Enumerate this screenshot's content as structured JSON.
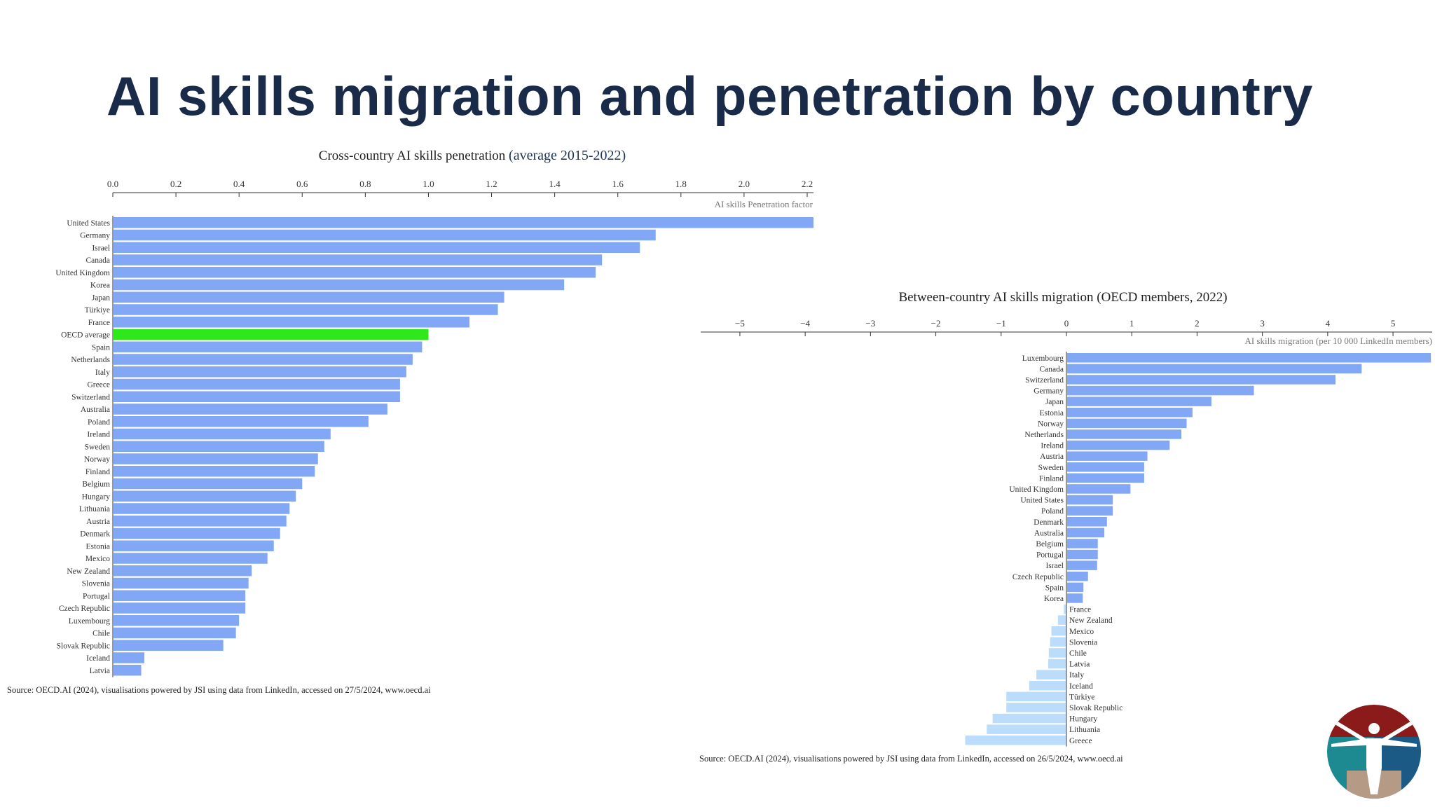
{
  "page": {
    "title": "AI skills migration and penetration by country"
  },
  "colors": {
    "bar": "#82a7f5",
    "highlight": "#2ee81c",
    "negative": "#bcdcfb",
    "title": "#1a2b4a"
  },
  "chart_data": [
    {
      "type": "bar",
      "orientation": "horizontal",
      "title": "Cross-country AI skills penetration",
      "title_suffix": "(average 2015-2022)",
      "xlabel": "AI skills Penetration factor",
      "xlim": [
        0,
        2.22
      ],
      "ticks": [
        "0.0",
        "0.2",
        "0.4",
        "0.6",
        "0.8",
        "1.0",
        "1.2",
        "1.4",
        "1.6",
        "1.8",
        "2.0",
        "2.2"
      ],
      "highlight": "OECD average",
      "categories": [
        "United States",
        "Germany",
        "Israel",
        "Canada",
        "United Kingdom",
        "Korea",
        "Japan",
        "Türkiye",
        "France",
        "OECD average",
        "Spain",
        "Netherlands",
        "Italy",
        "Greece",
        "Switzerland",
        "Australia",
        "Poland",
        "Ireland",
        "Sweden",
        "Norway",
        "Finland",
        "Belgium",
        "Hungary",
        "Lithuania",
        "Austria",
        "Denmark",
        "Estonia",
        "Mexico",
        "New Zealand",
        "Slovenia",
        "Portugal",
        "Czech Republic",
        "Luxembourg",
        "Chile",
        "Slovak Republic",
        "Iceland",
        "Latvia"
      ],
      "values": [
        2.22,
        1.72,
        1.67,
        1.55,
        1.53,
        1.43,
        1.24,
        1.22,
        1.13,
        1.0,
        0.98,
        0.95,
        0.93,
        0.91,
        0.91,
        0.87,
        0.81,
        0.69,
        0.67,
        0.65,
        0.64,
        0.6,
        0.58,
        0.56,
        0.55,
        0.53,
        0.51,
        0.49,
        0.44,
        0.43,
        0.42,
        0.42,
        0.4,
        0.39,
        0.35,
        0.1,
        0.09
      ],
      "source": "Source: OECD.AI (2024), visualisations powered by JSI using data from LinkedIn, accessed on 27/5/2024, www.oecd.ai"
    },
    {
      "type": "bar",
      "orientation": "horizontal",
      "title": "Between-country AI skills migration (OECD members, 2022)",
      "xlabel": "AI skills migration (per 10 000 LinkedIn members)",
      "xlim": [
        -5.6,
        5.6
      ],
      "ticks": [
        -5,
        -4,
        -3,
        -2,
        -1,
        0,
        1,
        2,
        3,
        4,
        5
      ],
      "categories": [
        "Luxembourg",
        "Canada",
        "Switzerland",
        "Germany",
        "Japan",
        "Estonia",
        "Norway",
        "Netherlands",
        "Ireland",
        "Austria",
        "Sweden",
        "Finland",
        "United Kingdom",
        "United States",
        "Poland",
        "Denmark",
        "Australia",
        "Belgium",
        "Portugal",
        "Israel",
        "Czech Republic",
        "Spain",
        "Korea",
        "France",
        "New Zealand",
        "Mexico",
        "Slovenia",
        "Chile",
        "Latvia",
        "Italy",
        "Iceland",
        "Türkiye",
        "Slovak Republic",
        "Hungary",
        "Lithuania",
        "Greece"
      ],
      "values": [
        5.58,
        4.52,
        4.12,
        2.87,
        2.22,
        1.93,
        1.84,
        1.76,
        1.58,
        1.24,
        1.19,
        1.19,
        0.98,
        0.71,
        0.71,
        0.62,
        0.58,
        0.48,
        0.48,
        0.47,
        0.33,
        0.26,
        0.25,
        -0.04,
        -0.13,
        -0.23,
        -0.25,
        -0.27,
        -0.28,
        -0.46,
        -0.57,
        -0.92,
        -0.92,
        -1.13,
        -1.22,
        -1.55
      ],
      "source": "Source: OECD.AI (2024), visualisations powered by JSI using data from LinkedIn, accessed on 26/5/2024, www.oecd.ai"
    }
  ]
}
